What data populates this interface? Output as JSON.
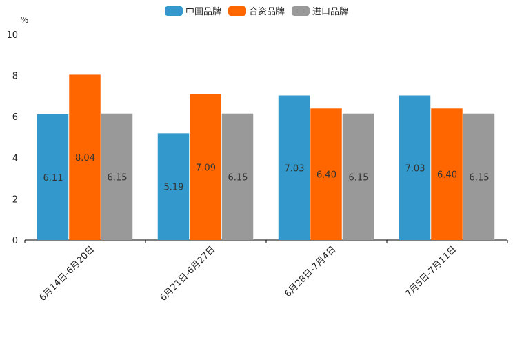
{
  "chart_data": {
    "type": "bar",
    "unit": "%",
    "categories": [
      "6月14日-6月20日",
      "6月21日-6月27日",
      "6月28日-7月4日",
      "7月5日-7月11日"
    ],
    "series": [
      {
        "name": "中国品牌",
        "color": "#3399cc",
        "values": [
          6.11,
          5.19,
          7.03,
          7.03
        ],
        "labels": [
          "6.11",
          "5.19",
          "7.03",
          "7.03"
        ]
      },
      {
        "name": "合资品牌",
        "color": "#ff6600",
        "values": [
          8.04,
          7.09,
          6.4,
          6.4
        ],
        "labels": [
          "8.04",
          "7.09",
          "6.40",
          "6.40"
        ]
      },
      {
        "name": "进口品牌",
        "color": "#999999",
        "values": [
          6.15,
          6.15,
          6.15,
          6.15
        ],
        "labels": [
          "6.15",
          "6.15",
          "6.15",
          "6.15"
        ]
      }
    ],
    "ylim": [
      0,
      10
    ],
    "yticks": [
      "0",
      "2",
      "4",
      "6",
      "8",
      "10"
    ],
    "legend_position": "top-center"
  }
}
